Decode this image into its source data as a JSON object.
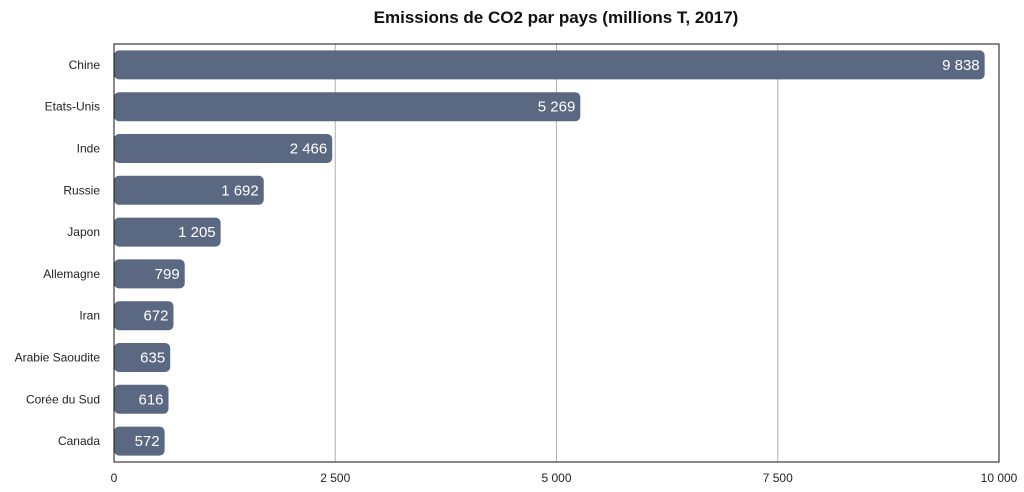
{
  "chart_data": {
    "type": "bar",
    "orientation": "horizontal",
    "title": "Emissions de CO2 par pays (millions T, 2017)",
    "xlabel": "",
    "ylabel": "",
    "categories": [
      "Chine",
      "Etats-Unis",
      "Inde",
      "Russie",
      "Japon",
      "Allemagne",
      "Iran",
      "Arabie Saoudite",
      "Corée du Sud",
      "Canada"
    ],
    "values": [
      9838,
      5269,
      2466,
      1692,
      1205,
      799,
      672,
      635,
      616,
      572
    ],
    "value_labels": [
      "9 838",
      "5 269",
      "2 466",
      "1 692",
      "1 205",
      "799",
      "672",
      "635",
      "616",
      "572"
    ],
    "xlim": [
      0,
      10000
    ],
    "xticks": [
      0,
      2500,
      5000,
      7500,
      10000
    ],
    "xtick_labels": [
      "0",
      "2 500",
      "5 000",
      "7 500",
      "10 000"
    ],
    "grid": true,
    "bar_color": "#5b6882",
    "grid_color": "#b0b0b0"
  }
}
